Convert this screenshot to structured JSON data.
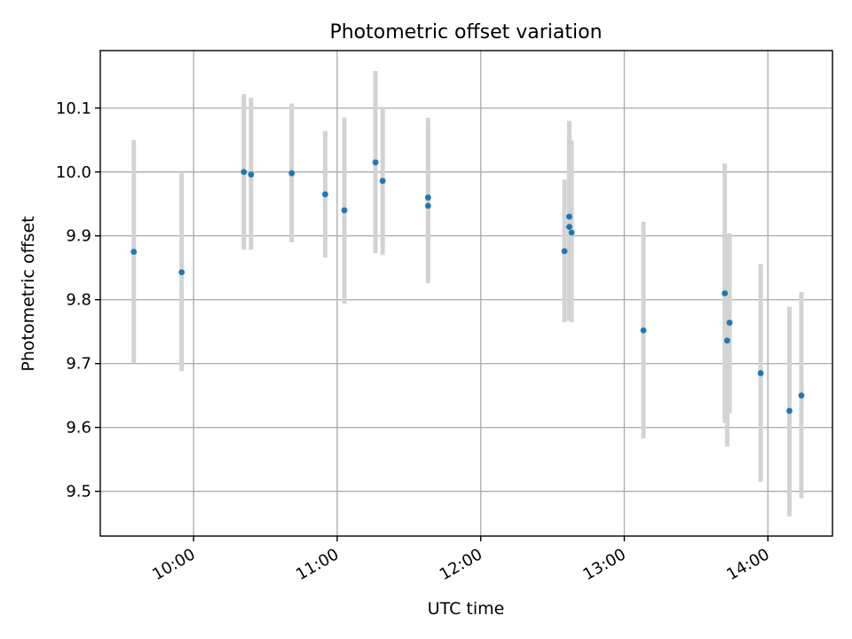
{
  "chart_data": {
    "type": "scatter",
    "title": "Photometric offset variation",
    "xlabel": "UTC time",
    "ylabel": "Photometric offset",
    "grid": true,
    "xlim": [
      "09:21",
      "14:27"
    ],
    "ylim": [
      9.43,
      10.19
    ],
    "x_ticks": [
      "10:00",
      "11:00",
      "12:00",
      "13:00",
      "14:00"
    ],
    "y_ticks": [
      9.5,
      9.6,
      9.7,
      9.8,
      9.9,
      10.0,
      10.1
    ],
    "y_tick_labels": [
      "9.5",
      "9.6",
      "9.7",
      "9.8",
      "9.9",
      "10.0",
      "10.1"
    ],
    "colors": {
      "points": "#1f77b4",
      "error_bars": "#d3d3d3"
    },
    "series": [
      {
        "x": [
          "09:35",
          "09:55",
          "10:21",
          "10:24",
          "10:41",
          "10:55",
          "11:03",
          "11:16",
          "11:19",
          "11:38",
          "11:38",
          "12:35",
          "12:37",
          "12:37",
          "12:38",
          "13:08",
          "13:42",
          "13:43",
          "13:44",
          "13:57",
          "14:09",
          "14:14"
        ],
        "y": [
          9.875,
          9.843,
          10.0,
          9.996,
          9.998,
          9.965,
          9.94,
          10.015,
          9.986,
          9.947,
          9.96,
          9.876,
          9.93,
          9.914,
          9.905,
          9.752,
          9.81,
          9.736,
          9.764,
          9.685,
          9.626,
          9.65
        ],
        "y_low": [
          9.7,
          9.688,
          9.878,
          9.878,
          9.89,
          9.866,
          9.794,
          9.873,
          9.87,
          9.826,
          9.835,
          9.765,
          9.767,
          9.77,
          9.765,
          9.583,
          9.607,
          9.57,
          9.622,
          9.515,
          9.461,
          9.489
        ],
        "y_high": [
          10.05,
          9.998,
          10.122,
          10.116,
          10.107,
          10.064,
          10.085,
          10.158,
          10.102,
          10.069,
          10.085,
          9.988,
          10.08,
          10.058,
          10.049,
          9.922,
          10.013,
          9.902,
          9.904,
          9.856,
          9.789,
          9.812
        ]
      }
    ]
  }
}
